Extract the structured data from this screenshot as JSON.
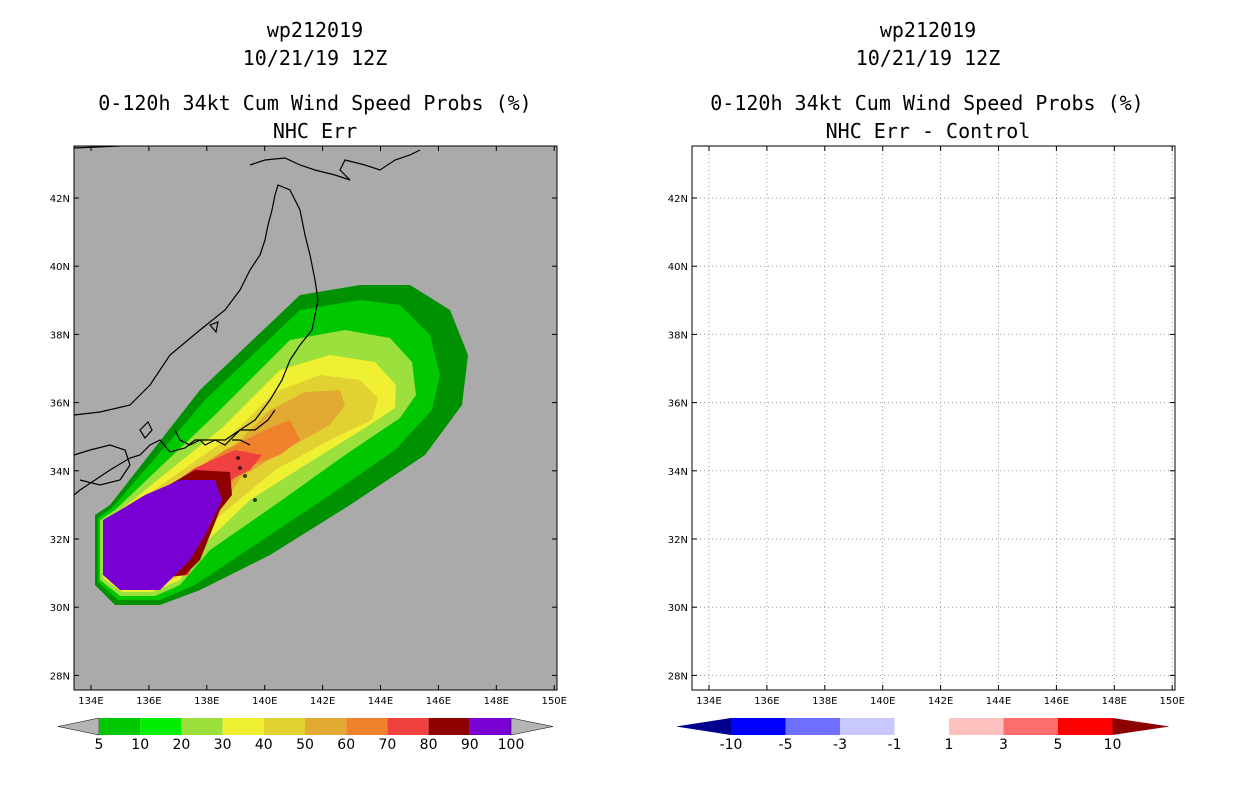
{
  "panels": [
    {
      "storm_id": "wp212019",
      "datetime": "10/21/19 12Z",
      "product": "0-120h 34kt Cum Wind Speed Probs (%)",
      "experiment": "NHC Err"
    },
    {
      "storm_id": "wp212019",
      "datetime": "10/21/19 12Z",
      "product": "0-120h 34kt Cum Wind Speed Probs (%)",
      "experiment": "NHC Err - Control"
    }
  ],
  "map": {
    "lat_labels": [
      "42N",
      "40N",
      "38N",
      "36N",
      "34N",
      "32N",
      "30N",
      "28N"
    ],
    "lon_labels": [
      "134E",
      "136E",
      "138E",
      "140E",
      "142E",
      "144E",
      "146E",
      "148E",
      "150E"
    ]
  },
  "colorbar_left": {
    "labels": [
      "5",
      "10",
      "20",
      "30",
      "40",
      "50",
      "60",
      "70",
      "80",
      "90",
      "100"
    ],
    "colors": [
      "#009100",
      "#00c800",
      "#00ef00",
      "#9be03c",
      "#f0f032",
      "#e1d232",
      "#e1aa32",
      "#f0822d",
      "#f04141",
      "#8c0000",
      "#7800d2"
    ],
    "below_color": "#b4b4b4",
    "above_color": "#b4b4b4"
  },
  "colorbar_right": {
    "labels": [
      "-10",
      "-5",
      "-3",
      "-1",
      "1",
      "3",
      "5",
      "10"
    ],
    "colors": [
      "#00008c",
      "#0000ff",
      "#6e6eff",
      "#c8c8ff",
      "#ffffff",
      "#ffc0c0",
      "#ff6e6e",
      "#ff0000",
      "#8c0000"
    ]
  },
  "colors": {
    "land_bg_left": "#aaaaaa",
    "grid": "#999999"
  }
}
